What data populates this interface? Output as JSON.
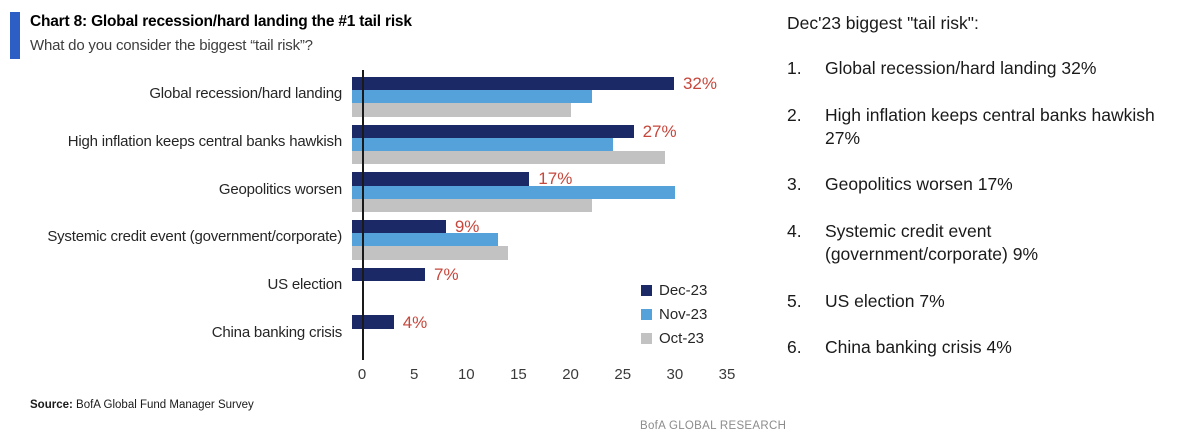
{
  "header": {
    "title": "Chart 8: Global recession/hard landing the #1 tail risk",
    "subtitle": "What do you consider the biggest “tail risk”?"
  },
  "chart_data": {
    "type": "bar",
    "orientation": "horizontal",
    "title": "Chart 8: Global recession/hard landing the #1 tail risk",
    "categories": [
      "Global recession/hard landing",
      "High inflation keeps central banks hawkish",
      "Geopolitics worsen",
      "Systemic credit event (government/corporate)",
      "US election",
      "China banking crisis"
    ],
    "series": [
      {
        "name": "Dec-23",
        "color": "#1b2a66",
        "values": [
          32,
          27,
          17,
          9,
          7,
          4
        ]
      },
      {
        "name": "Nov-23",
        "color": "#55a1d9",
        "values": [
          23,
          25,
          31,
          14,
          null,
          null
        ]
      },
      {
        "name": "Oct-23",
        "color": "#c2c2c2",
        "values": [
          21,
          30,
          23,
          15,
          null,
          null
        ]
      }
    ],
    "data_labels": {
      "series": "Dec-23",
      "values": [
        "32%",
        "27%",
        "17%",
        "9%",
        "7%",
        "4%"
      ],
      "color": "#c6473c"
    },
    "xlim": [
      0,
      35
    ],
    "x_ticks": [
      "0",
      "5",
      "10",
      "15",
      "20",
      "25",
      "30",
      "35"
    ],
    "grid": false,
    "legend_position": "inside-bottom-right"
  },
  "right_panel": {
    "heading": "Dec'23 biggest \"tail risk\":",
    "items": [
      {
        "num": "1.",
        "text": "Global recession/hard landing 32%"
      },
      {
        "num": "2.",
        "text": "High inflation keeps central banks hawkish\n27%"
      },
      {
        "num": "3.",
        "text": "Geopolitics worsen 17%"
      },
      {
        "num": "4.",
        "text": "Systemic credit event\n(government/corporate) 9%"
      },
      {
        "num": "5.",
        "text": "US election 7%"
      },
      {
        "num": "6.",
        "text": "China banking crisis 4%"
      }
    ]
  },
  "footer": {
    "source_label": "Source:",
    "source_text": "BofA Global Fund Manager Survey",
    "branding": "BofA GLOBAL RESEARCH"
  }
}
